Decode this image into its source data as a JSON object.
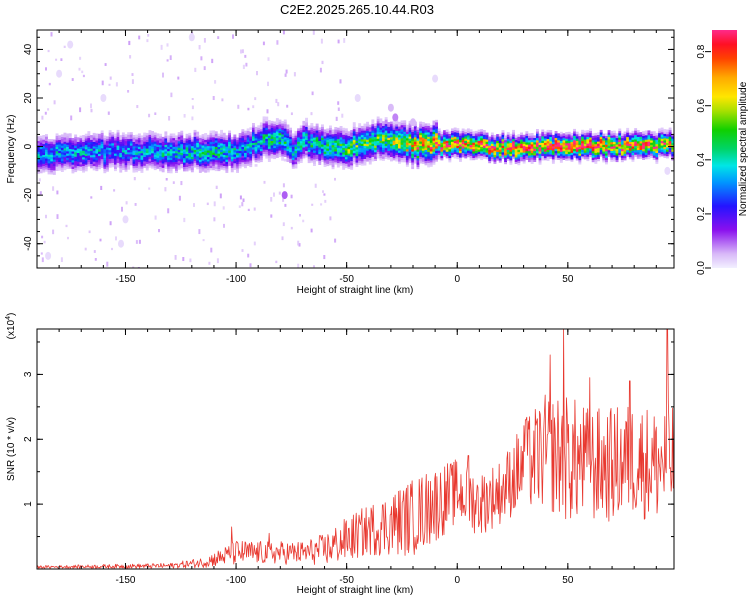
{
  "title": "C2E2.2025.265.10.44.R03",
  "colors": {
    "snr_line": "#e8382f",
    "axes": "#000000",
    "background": "#ffffff"
  },
  "chart_data": [
    {
      "type": "heatmap",
      "xlabel": "Height of straight line (km)",
      "ylabel": "Frequency (Hz)",
      "xlim": [
        -190,
        98
      ],
      "ylim": [
        -50,
        48
      ],
      "xticks": [
        -150,
        -100,
        -50,
        0,
        50
      ],
      "xtick_labels": [
        "-150",
        "-100",
        "-50",
        "0",
        "50"
      ],
      "yticks": [
        -40,
        -20,
        0,
        20,
        40
      ],
      "ytick_labels": [
        "-40",
        "-20",
        "0",
        "20",
        "40"
      ],
      "colorbar": {
        "label": "Normalized spectral amplitude",
        "range": [
          0,
          0.88
        ],
        "ticks": [
          0.0,
          0.2,
          0.4,
          0.6,
          0.8
        ],
        "tick_labels": [
          "0.0",
          "0.2",
          "0.4",
          "0.6",
          "0.8"
        ],
        "colormap": "rainbow"
      },
      "ridge": {
        "height_km": [
          -190,
          -170,
          -150,
          -130,
          -110,
          -100,
          -90,
          -80,
          -75,
          -70,
          -60,
          -50,
          -40,
          -30,
          -20,
          -10,
          0,
          20,
          40,
          60,
          80,
          98
        ],
        "frequency_hz": [
          -4,
          -3,
          -2,
          -3,
          -2,
          -3,
          2,
          4,
          -2,
          2,
          0,
          -1,
          2,
          3,
          0,
          1,
          0,
          -1,
          0,
          0,
          0,
          0
        ],
        "peak_amplitude": [
          0.35,
          0.35,
          0.32,
          0.38,
          0.42,
          0.35,
          0.38,
          0.45,
          0.35,
          0.4,
          0.45,
          0.5,
          0.5,
          0.55,
          0.7,
          0.8,
          0.85,
          0.8,
          0.85,
          0.85,
          0.8,
          0.7
        ]
      },
      "outliers": [
        {
          "height_km": -78,
          "frequency_hz": -20,
          "amplitude": 0.1
        },
        {
          "height_km": -30,
          "frequency_hz": 16,
          "amplitude": 0.05
        },
        {
          "height_km": -28,
          "frequency_hz": 12,
          "amplitude": 0.08
        },
        {
          "height_km": -20,
          "frequency_hz": 10,
          "amplitude": 0.05
        },
        {
          "height_km": -152,
          "frequency_hz": -40,
          "amplitude": 0.02
        },
        {
          "height_km": -180,
          "frequency_hz": 30,
          "amplitude": 0.02
        },
        {
          "height_km": -175,
          "frequency_hz": 42,
          "amplitude": 0.02
        },
        {
          "height_km": -120,
          "frequency_hz": 45,
          "amplitude": 0.02
        },
        {
          "height_km": -160,
          "frequency_hz": 20,
          "amplitude": 0.02
        },
        {
          "height_km": -150,
          "frequency_hz": -30,
          "amplitude": 0.02
        },
        {
          "height_km": -185,
          "frequency_hz": -45,
          "amplitude": 0.02
        },
        {
          "height_km": -10,
          "frequency_hz": 28,
          "amplitude": 0.02
        },
        {
          "height_km": -45,
          "frequency_hz": 20,
          "amplitude": 0.02
        },
        {
          "height_km": 95,
          "frequency_hz": -10,
          "amplitude": 0.02
        }
      ]
    },
    {
      "type": "line",
      "xlabel": "Height of straight line (km)",
      "ylabel": "SNR (10 * v/v)",
      "y_multiplier_label": "(x10",
      "y_multiplier_exponent": "4",
      "y_multiplier_close": ")",
      "xlim": [
        -190,
        98
      ],
      "ylim": [
        0,
        3.7
      ],
      "xticks": [
        -150,
        -100,
        -50,
        0,
        50
      ],
      "xtick_labels": [
        "-150",
        "-100",
        "-50",
        "0",
        "50"
      ],
      "yticks": [
        1,
        2,
        3
      ],
      "ytick_labels": [
        "1",
        "2",
        "3"
      ],
      "series": [
        {
          "envelope_x": [
            -190,
            -160,
            -130,
            -115,
            -105,
            -100,
            -90,
            -80,
            -70,
            -60,
            -50,
            -40,
            -30,
            -20,
            -10,
            0,
            10,
            20,
            30,
            40,
            50,
            60,
            70,
            80,
            90,
            98
          ],
          "envelope_mean": [
            0.03,
            0.04,
            0.05,
            0.1,
            0.2,
            0.25,
            0.25,
            0.25,
            0.25,
            0.3,
            0.45,
            0.6,
            0.7,
            0.8,
            1.0,
            1.2,
            1.0,
            1.2,
            1.6,
            1.8,
            1.7,
            1.6,
            1.6,
            1.7,
            1.6,
            1.7
          ],
          "envelope_amp": [
            0.02,
            0.03,
            0.04,
            0.08,
            0.15,
            0.2,
            0.18,
            0.18,
            0.18,
            0.25,
            0.35,
            0.4,
            0.5,
            0.6,
            0.6,
            0.5,
            0.5,
            0.5,
            0.7,
            0.9,
            1.0,
            0.9,
            0.9,
            0.9,
            0.9,
            0.9
          ],
          "peaks": [
            {
              "x": -102,
              "y": 0.65
            },
            {
              "x": -85,
              "y": 0.55
            },
            {
              "x": -12,
              "y": 1.35
            },
            {
              "x": 5,
              "y": 1.75
            },
            {
              "x": 31,
              "y": 2.3
            },
            {
              "x": 42,
              "y": 3.3
            },
            {
              "x": 48,
              "y": 3.7
            },
            {
              "x": 60,
              "y": 2.95
            },
            {
              "x": 78,
              "y": 2.9
            },
            {
              "x": 95,
              "y": 3.7
            }
          ]
        }
      ]
    }
  ]
}
